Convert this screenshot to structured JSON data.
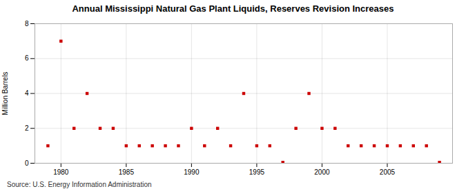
{
  "chart_data": {
    "type": "scatter",
    "title": "Annual Mississippi Natural Gas Plant Liquids, Reserves Revision Increases",
    "ylabel": "Million Barrels",
    "source": "Source: U.S. Energy Information Administration",
    "color": "#cc0000",
    "marker": "square",
    "grid": true,
    "xlim": [
      1978.0,
      2010.0
    ],
    "ylim": [
      0,
      8
    ],
    "xticks": [
      1980,
      1985,
      1990,
      1995,
      2000,
      2005
    ],
    "yticks": [
      0,
      2,
      4,
      6,
      8
    ],
    "x": [
      1979,
      1980,
      1981,
      1982,
      1983,
      1984,
      1985,
      1986,
      1987,
      1988,
      1989,
      1990,
      1991,
      1992,
      1993,
      1994,
      1995,
      1996,
      1997,
      1998,
      1999,
      2000,
      2001,
      2002,
      2003,
      2004,
      2005,
      2006,
      2007,
      2008,
      2009
    ],
    "values": [
      1,
      7,
      2,
      4,
      2,
      2,
      1,
      1,
      1,
      1,
      1,
      2,
      1,
      2,
      1,
      4,
      1,
      1,
      0.05,
      2,
      4,
      2,
      2,
      1,
      1,
      1,
      1,
      1,
      1,
      1,
      0.05
    ]
  }
}
